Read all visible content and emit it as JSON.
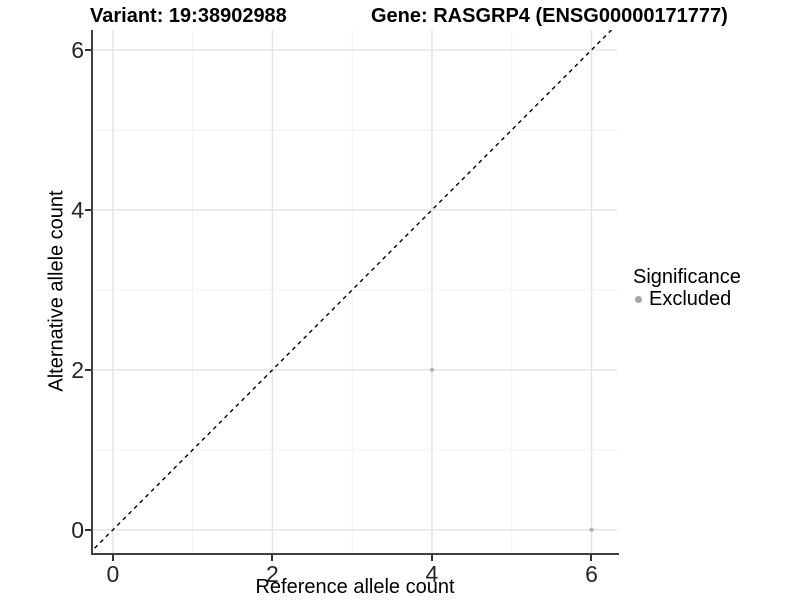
{
  "header": {
    "variant_title": "Variant: 19:38902988",
    "gene_title": "Gene: RASGRP4 (ENSG00000171777)"
  },
  "chart_data": {
    "type": "scatter",
    "xlabel": "Reference allele count",
    "ylabel": "Alternative allele count",
    "xlim": [
      -0.25,
      6.32
    ],
    "ylim": [
      -0.29,
      6.25
    ],
    "xticks": [
      0,
      2,
      4,
      6
    ],
    "yticks": [
      0,
      2,
      4,
      6
    ],
    "minor_xticks": [
      1,
      3,
      5
    ],
    "minor_yticks": [
      1,
      3,
      5
    ],
    "grid": true,
    "identity_line": {
      "style": "dashed",
      "from": -0.3,
      "to": 6.5,
      "color": "#000000"
    },
    "series": [
      {
        "name": "Excluded",
        "color": "#b3b3b3",
        "points": [
          {
            "x": 4,
            "y": 2
          },
          {
            "x": 6,
            "y": 0
          }
        ]
      }
    ],
    "legend": {
      "title": "Significance",
      "position": "right",
      "items": [
        {
          "label": "Excluded",
          "color": "#a6a6a6"
        }
      ]
    },
    "colors": {
      "axis_line": "#404040",
      "tick": "#333333",
      "grid_major": "#e5e5e5",
      "grid_minor": "#f2f2f2",
      "background": "#ffffff"
    }
  }
}
